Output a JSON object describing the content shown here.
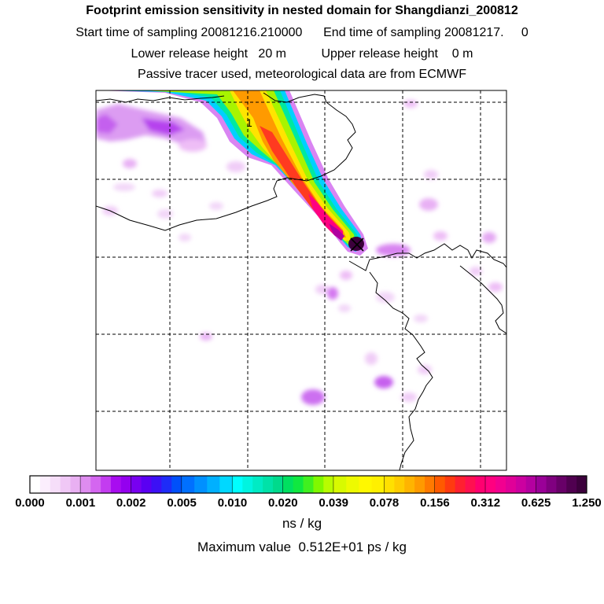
{
  "titles": {
    "line1": "Footprint emission sensitivity in nested domain for Shangdianzi_200812",
    "line2": "Start time of sampling 20081216.210000      End time of sampling 20081217.     0",
    "line3": "Lower release height   20 m          Upper release height    0 m",
    "line4": "Passive tracer used, meteorological data are from ECMWF"
  },
  "map": {
    "contour_label": "1",
    "marker": "release-site-cross"
  },
  "chart_data": {
    "type": "heatmap",
    "title": "Footprint emission sensitivity in nested domain for Shangdianzi_200812",
    "units": "ns / kg",
    "colorbar_ticks": [
      "0.000",
      "0.001",
      "0.002",
      "0.005",
      "0.010",
      "0.020",
      "0.039",
      "0.078",
      "0.156",
      "0.312",
      "0.625",
      "1.250"
    ],
    "colorbar_colors": [
      [
        "#ffffff",
        "#fbeefd",
        "#f6def9",
        "#f0c8f6",
        "#e9b0f2"
      ],
      [
        "#de8cef",
        "#d466f0",
        "#c33cf0",
        "#a80cf0",
        "#9400ef"
      ],
      [
        "#7800f0",
        "#5a00f2",
        "#3c10f5",
        "#1e2cf8",
        "#0050fa"
      ],
      [
        "#0070ff",
        "#0090ff",
        "#00b0ff",
        "#00d8ff"
      ],
      [
        "#00ffff",
        "#00f4e0",
        "#00ebc4",
        "#00e2a8",
        "#00da8c"
      ],
      [
        "#00e060",
        "#10e840",
        "#40f020",
        "#80f800",
        "#b8fc00"
      ],
      [
        "#d8fa00",
        "#eefa00",
        "#fff800",
        "#fff000"
      ],
      [
        "#ffe000",
        "#ffcc00",
        "#ffb400",
        "#ff9a00",
        "#ff7a00"
      ],
      [
        "#ff5a00",
        "#ff3a10",
        "#ff2030",
        "#ff1050",
        "#ff0070"
      ],
      [
        "#ff0080",
        "#f20090",
        "#e00098",
        "#cc00a0",
        "#b400a0"
      ],
      [
        "#9a0098",
        "#800080",
        "#680068",
        "#500050",
        "#3c003c"
      ]
    ],
    "maximum_value_label": "Maximum value  0.512E+01 ps / kg",
    "release_height_lower_m": 20,
    "release_height_upper_m": 0
  }
}
